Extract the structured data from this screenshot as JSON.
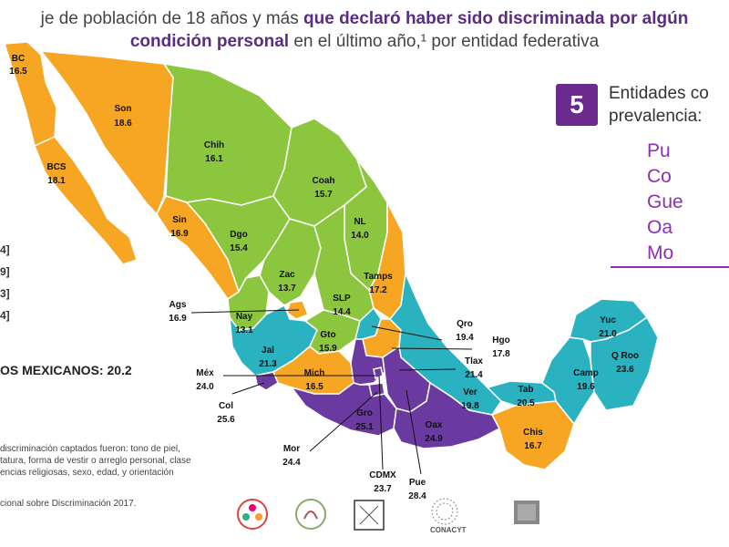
{
  "title": {
    "pre": "je de población de 18 años y más ",
    "bold1": "que declaró haber sido discriminada por algún",
    "bold2": "condición personal",
    "post": " en el último año,¹ por entidad federativa"
  },
  "sidebar": {
    "badge": "5",
    "heading_l1": "Entidades co",
    "heading_l2": "prevalencia:",
    "ranking": [
      "Pu",
      "Co",
      "Gue",
      "Oa",
      "Mo"
    ]
  },
  "legend": [
    "4]",
    "9]",
    "3]",
    "4]"
  ],
  "national": "OS MEXICANOS: 20.2",
  "note": [
    "discriminación captados fueron: tono de piel,",
    "tatura, forma de vestir o arreglo personal, clase",
    "encias religiosas, sexo, edad, y orientación"
  ],
  "source": "cional sobre Discriminación 2017.",
  "logos": {
    "conacyt": "CONACYT"
  },
  "colors": {
    "orange": "#f6a623",
    "green": "#8cc63f",
    "teal": "#2ab2c1",
    "purple": "#6a3aa1"
  },
  "states": [
    {
      "abbr": "BC",
      "value": "16.5"
    },
    {
      "abbr": "Son",
      "value": "18.6"
    },
    {
      "abbr": "BCS",
      "value": "18.1"
    },
    {
      "abbr": "Chih",
      "value": "16.1"
    },
    {
      "abbr": "Coah",
      "value": "15.7"
    },
    {
      "abbr": "NL",
      "value": "14.0"
    },
    {
      "abbr": "Sin",
      "value": "16.9"
    },
    {
      "abbr": "Dgo",
      "value": "15.4"
    },
    {
      "abbr": "Zac",
      "value": "13.7"
    },
    {
      "abbr": "Tamps",
      "value": "17.2"
    },
    {
      "abbr": "SLP",
      "value": "14.4"
    },
    {
      "abbr": "Ags",
      "value": "16.9"
    },
    {
      "abbr": "Nay",
      "value": "13.1"
    },
    {
      "abbr": "Gto",
      "value": "15.9"
    },
    {
      "abbr": "Qro",
      "value": "19.4"
    },
    {
      "abbr": "Hgo",
      "value": "17.8"
    },
    {
      "abbr": "Jal",
      "value": "21.3"
    },
    {
      "abbr": "Tlax",
      "value": "21.4"
    },
    {
      "abbr": "Méx",
      "value": "24.0"
    },
    {
      "abbr": "Mich",
      "value": "16.5"
    },
    {
      "abbr": "Ver",
      "value": "19.8"
    },
    {
      "abbr": "Col",
      "value": "25.6"
    },
    {
      "abbr": "Yuc",
      "value": "21.0"
    },
    {
      "abbr": "Q Roo",
      "value": "23.6"
    },
    {
      "abbr": "Camp",
      "value": "19.6"
    },
    {
      "abbr": "Tab",
      "value": "20.5"
    },
    {
      "abbr": "Gro",
      "value": "25.1"
    },
    {
      "abbr": "Oax",
      "value": "24.9"
    },
    {
      "abbr": "Chis",
      "value": "16.7"
    },
    {
      "abbr": "Mor",
      "value": "24.4"
    },
    {
      "abbr": "CDMX",
      "value": "23.7"
    },
    {
      "abbr": "Pue",
      "value": "28.4"
    }
  ]
}
